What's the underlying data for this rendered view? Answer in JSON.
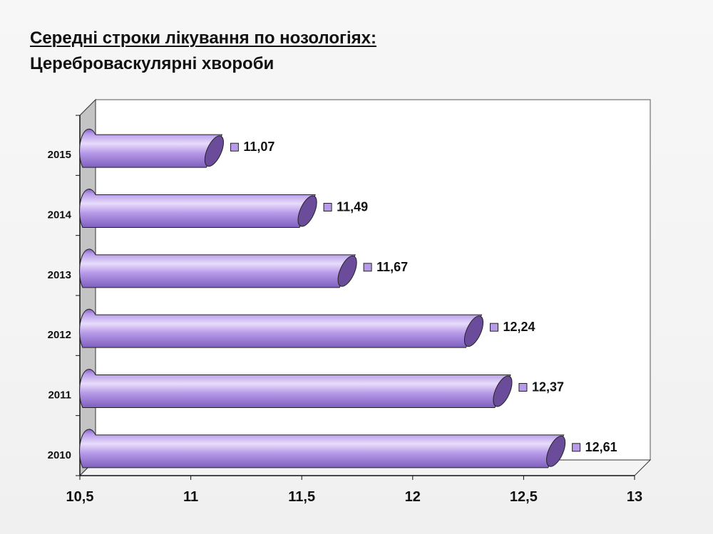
{
  "title": "Середні строки лікування по нозологіях:",
  "subtitle": "Цереброваскулярні хвороби",
  "colors": {
    "bar_face": "#b79ae8",
    "bar_highlight": "#e8dcfb",
    "bar_shadow": "#7e5fbf",
    "bar_cap": "#6a4c9a",
    "side_wall": "#c4c4c4",
    "plot_bg": "#ffffff",
    "label_marker": "#b79ae8"
  },
  "chart_data": {
    "type": "bar",
    "orientation": "horizontal",
    "three_d": true,
    "categories": [
      "2010",
      "2011",
      "2012",
      "2013",
      "2014",
      "2015"
    ],
    "values": [
      12.61,
      12.37,
      12.24,
      11.67,
      11.49,
      11.07
    ],
    "data_labels": [
      "12,61",
      "12,37",
      "12,24",
      "11,67",
      "11,49",
      "11,07"
    ],
    "xlim": [
      10.5,
      13
    ],
    "x_ticks": [
      10.5,
      11,
      11.5,
      12,
      12.5,
      13
    ],
    "x_tick_labels": [
      "10,5",
      "11",
      "11,5",
      "12",
      "12,5",
      "13"
    ],
    "grid": false,
    "legend": "none"
  }
}
